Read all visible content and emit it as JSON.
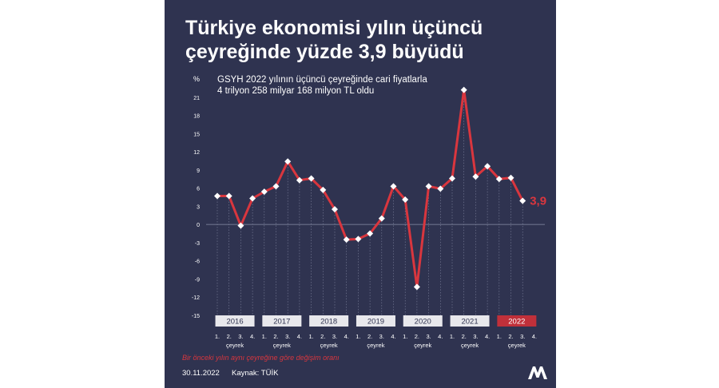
{
  "title_lines": [
    "Türkiye ekonomisi yılın üçüncü",
    "çeyreğinde yüzde 3,9 büyüdü"
  ],
  "subtitle_lines": [
    "GSYH 2022 yılının üçüncü çeyreğinde cari fiyatlarla",
    "4 trilyon 258 milyar 168 milyon TL oldu"
  ],
  "note": "Bir önceki yılın aynı çeyreğine göre değişim oranı",
  "date": "30.11.2022",
  "source": "Kaynak: TÜİK",
  "logo_text": "AA",
  "colors": {
    "background": "#2f3350",
    "line": "#d9363e",
    "marker": "#ffffff",
    "year_box": "#e8e8ec",
    "year_box_highlight": "#c0303a"
  },
  "chart_data": {
    "type": "line",
    "ylabel": "%",
    "ylim": [
      -15,
      24
    ],
    "yticks": [
      -15,
      -12,
      -9,
      -6,
      -3,
      0,
      3,
      6,
      9,
      12,
      15,
      18,
      21
    ],
    "quarter_labels": [
      "1.",
      "2.",
      "3.",
      "4."
    ],
    "quarter_word": "çeyrek",
    "years": [
      {
        "label": "2016",
        "values": [
          4.7,
          4.7,
          -0.2,
          4.3
        ],
        "highlight": false
      },
      {
        "label": "2017",
        "values": [
          5.4,
          6.3,
          10.4,
          7.3
        ],
        "highlight": false
      },
      {
        "label": "2018",
        "values": [
          7.6,
          5.7,
          2.5,
          -2.5
        ],
        "highlight": false
      },
      {
        "label": "2019",
        "values": [
          -2.4,
          -1.5,
          1.0,
          6.3
        ],
        "highlight": false
      },
      {
        "label": "2020",
        "values": [
          4.1,
          -10.3,
          6.3,
          5.9
        ],
        "highlight": false
      },
      {
        "label": "2021",
        "values": [
          7.6,
          22.2,
          7.9,
          9.6
        ],
        "highlight": false
      },
      {
        "label": "2022",
        "values": [
          7.5,
          7.7,
          3.9
        ],
        "highlight": true
      }
    ],
    "last_value_label": "3,9"
  }
}
